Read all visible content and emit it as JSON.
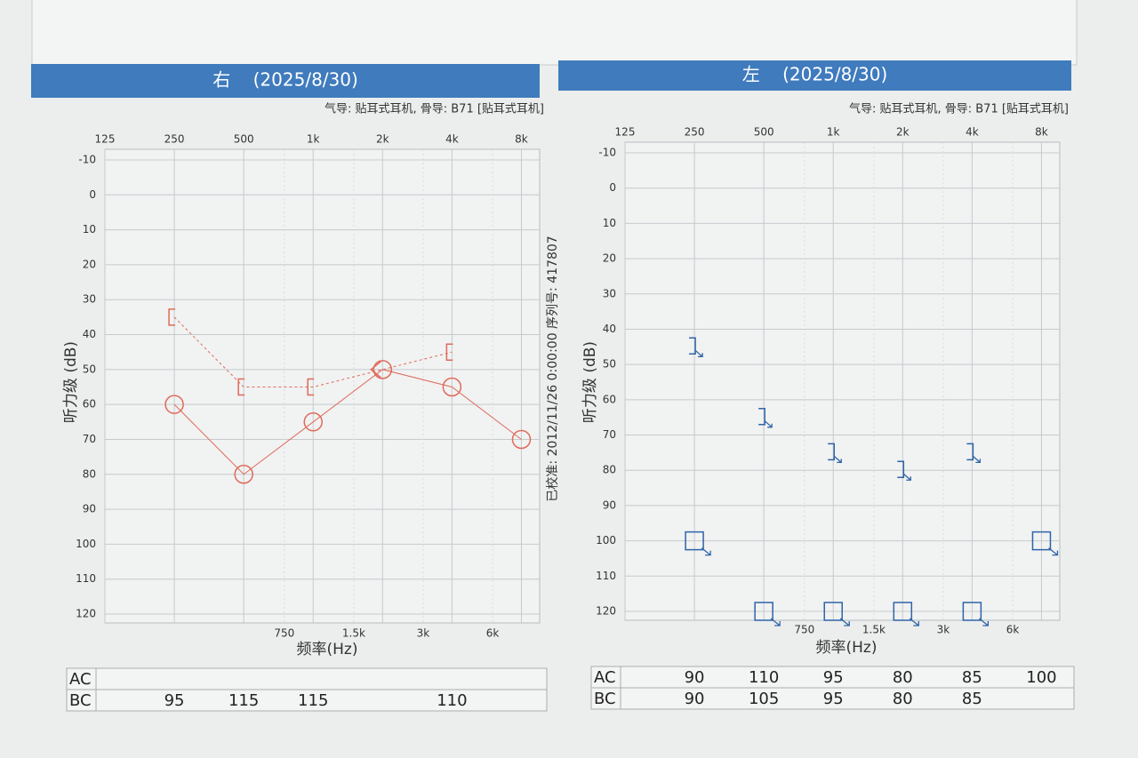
{
  "calibration_note": "已校准: 2012/11/26 0:00:00 序列号: 417807",
  "chart_data": [
    {
      "type": "audiogram",
      "title": "右    (2025/8/30)",
      "subtitle": "气导: 贴耳式耳机, 骨导: B71 [贴耳式耳机]",
      "x_label": "频率(Hz)",
      "y_label": "听力级 (dB)",
      "xscale": "log",
      "y_inverted": true,
      "grid": true,
      "xlim": [
        125,
        9600
      ],
      "ylim": [
        -10,
        120
      ],
      "xticks": [
        125,
        250,
        500,
        {
          "value": 1000,
          "label": "1k"
        },
        {
          "value": 2000,
          "label": "2k"
        },
        {
          "value": 4000,
          "label": "4k"
        },
        {
          "value": 8000,
          "label": "8k"
        }
      ],
      "xticks_intermediate": [
        750,
        {
          "value": 1500,
          "label": "1.5k"
        },
        {
          "value": 3000,
          "label": "3k"
        },
        {
          "value": 6000,
          "label": "6k"
        }
      ],
      "yticks": [
        -10,
        0,
        10,
        20,
        30,
        40,
        50,
        60,
        70,
        80,
        90,
        100,
        110,
        120
      ],
      "series": [
        {
          "color": "#e06a5a",
          "line": "solid",
          "symbols": [
            "circle",
            "circle",
            "circle",
            "circle",
            "circle",
            "circle"
          ],
          "x": [
            250,
            500,
            1000,
            2000,
            4000,
            8000
          ],
          "values": [
            60,
            80,
            65,
            50,
            55,
            70
          ]
        },
        {
          "color": "#e06a5a",
          "line": "dashed",
          "symbols": [
            "bracket-left",
            "bracket-left",
            "bracket-left",
            "angle-left",
            "bracket-left"
          ],
          "x": [
            250,
            500,
            1000,
            2000,
            4000
          ],
          "values": [
            35,
            55,
            55,
            50,
            45
          ]
        }
      ],
      "table": {
        "rows": [
          {
            "label": "AC",
            "values": [
              null,
              null,
              null,
              null,
              null,
              null
            ]
          },
          {
            "label": "BC",
            "values": [
              95,
              115,
              115,
              null,
              110,
              null
            ]
          }
        ]
      }
    },
    {
      "type": "audiogram",
      "title": "左    (2025/8/30)",
      "subtitle": "气导: 贴耳式耳机, 骨导: B71 [贴耳式耳机]",
      "x_label": "频率(Hz)",
      "y_label": "听力级 (dB)",
      "xscale": "log",
      "y_inverted": true,
      "grid": true,
      "xlim": [
        125,
        9600
      ],
      "ylim": [
        -10,
        120
      ],
      "xticks": [
        125,
        250,
        500,
        {
          "value": 1000,
          "label": "1k"
        },
        {
          "value": 2000,
          "label": "2k"
        },
        {
          "value": 4000,
          "label": "4k"
        },
        {
          "value": 8000,
          "label": "8k"
        }
      ],
      "xticks_intermediate": [
        750,
        {
          "value": 1500,
          "label": "1.5k"
        },
        {
          "value": 3000,
          "label": "3k"
        },
        {
          "value": 6000,
          "label": "6k"
        }
      ],
      "yticks": [
        -10,
        0,
        10,
        20,
        30,
        40,
        50,
        60,
        70,
        80,
        90,
        100,
        110,
        120
      ],
      "series": [
        {
          "color": "#2e64a8",
          "line": "none",
          "symbols": [
            "square-arrow",
            "square-arrow",
            "square-arrow",
            "square-arrow",
            "square-arrow",
            "square-arrow"
          ],
          "x": [
            250,
            500,
            1000,
            2000,
            4000,
            8000
          ],
          "values": [
            100,
            120,
            120,
            120,
            120,
            100
          ]
        },
        {
          "color": "#2e64a8",
          "line": "none",
          "symbols": [
            "bracket-right-arrow",
            "bracket-right-arrow",
            "bracket-right-arrow",
            "bracket-right-arrow",
            "bracket-right-arrow"
          ],
          "x": [
            250,
            500,
            1000,
            2000,
            4000
          ],
          "values": [
            45,
            65,
            75,
            80,
            75
          ]
        }
      ],
      "table": {
        "rows": [
          {
            "label": "AC",
            "values": [
              90,
              110,
              95,
              80,
              85,
              100
            ]
          },
          {
            "label": "BC",
            "values": [
              90,
              105,
              95,
              80,
              85,
              null
            ]
          }
        ]
      }
    }
  ]
}
